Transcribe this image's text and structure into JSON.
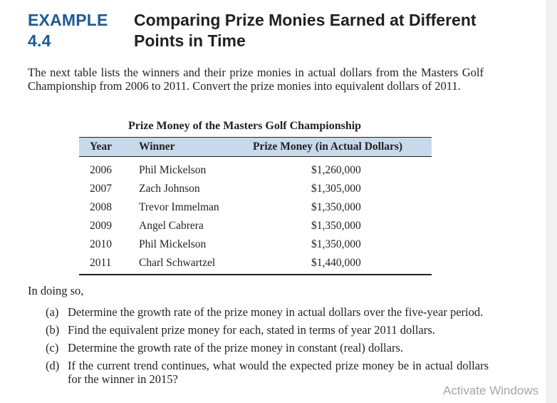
{
  "example": {
    "label": "EXAMPLE 4.4",
    "title": "Comparing Prize Monies Earned at Different Points in Time"
  },
  "intro": "The next table lists the winners and their prize monies in actual dollars from the Masters Golf Championship from 2006 to 2011. Convert the prize monies into equivalent dollars of 2011.",
  "table": {
    "title": "Prize Money of the Masters Golf Championship",
    "headers": {
      "year": "Year",
      "winner": "Winner",
      "money": "Prize Money (in Actual Dollars)"
    },
    "rows": [
      {
        "year": "2006",
        "winner": "Phil Mickelson",
        "money": "$1,260,000"
      },
      {
        "year": "2007",
        "winner": "Zach Johnson",
        "money": "$1,305,000"
      },
      {
        "year": "2008",
        "winner": "Trevor Immelman",
        "money": "$1,350,000"
      },
      {
        "year": "2009",
        "winner": "Angel Cabrera",
        "money": "$1,350,000"
      },
      {
        "year": "2010",
        "winner": "Phil Mickelson",
        "money": "$1,350,000"
      },
      {
        "year": "2011",
        "winner": "Charl Schwartzel",
        "money": "$1,440,000"
      }
    ],
    "header_color": "#c8d9eb"
  },
  "in_doing_so": "In doing so,",
  "questions": [
    {
      "letter": "(a)",
      "text": "Determine the growth rate of the prize money in actual dollars over the five-year period."
    },
    {
      "letter": "(b)",
      "text": "Find the equivalent prize money for each, stated in terms of year 2011 dollars."
    },
    {
      "letter": "(c)",
      "text": "Determine the growth rate of the prize money in constant (real) dollars."
    },
    {
      "letter": "(d)",
      "text": "If the current trend continues, what would the expected prize money be in actual dollars for the winner in 2015?"
    }
  ],
  "watermark": "Activate Windows",
  "colors": {
    "label_blue": "#1f5a92",
    "text": "#231f20"
  }
}
